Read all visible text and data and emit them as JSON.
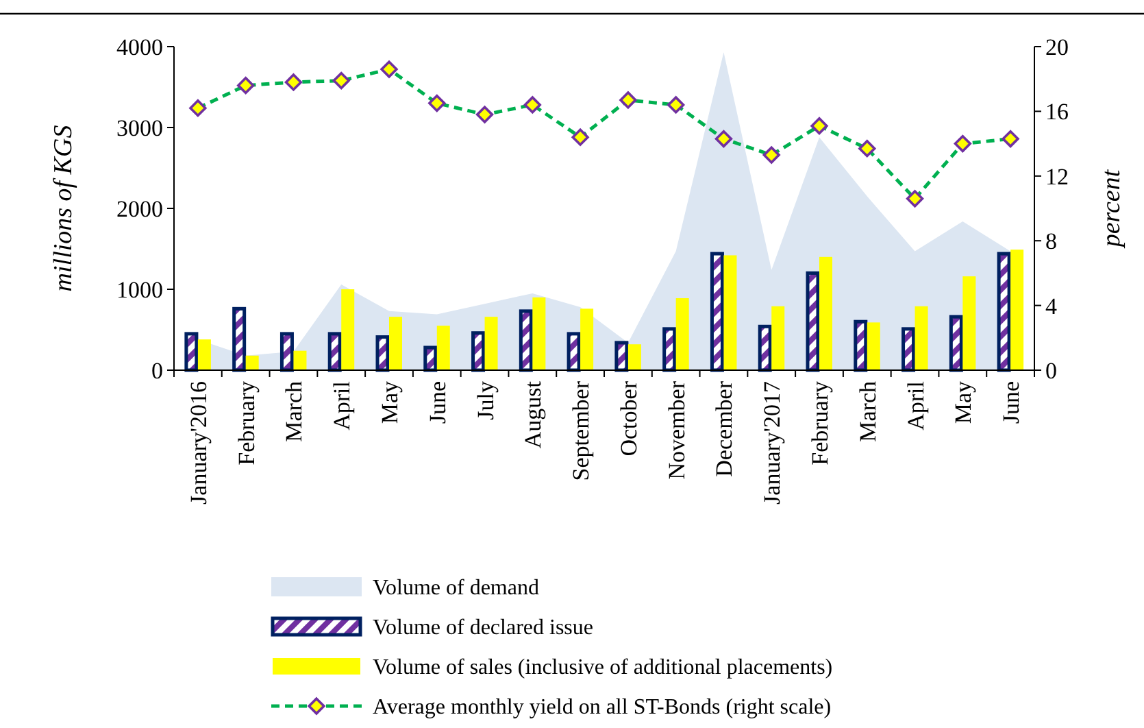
{
  "chart_data": {
    "type": "bar",
    "ylabel": "millions of KGS",
    "y2label": "percent",
    "categories": [
      "January'2016",
      "February",
      "March",
      "April",
      "May",
      "June",
      "July",
      "August",
      "September",
      "October",
      "November",
      "December",
      "January'2017",
      "February",
      "March",
      "April",
      "May",
      "June"
    ],
    "series": [
      {
        "name": "Volume of demand",
        "type": "area",
        "color": "#dce6f2",
        "values": [
          380,
          180,
          230,
          1060,
          730,
          690,
          820,
          950,
          780,
          340,
          1470,
          3930,
          1240,
          2880,
          2150,
          1470,
          1840,
          1470
        ]
      },
      {
        "name": "Volume of declared issue",
        "color": "#002060",
        "values": [
          450,
          760,
          450,
          450,
          410,
          280,
          460,
          730,
          450,
          340,
          510,
          1440,
          540,
          1200,
          600,
          510,
          660,
          1440
        ]
      },
      {
        "name": "Volume of sales (inclusive of additional placements)",
        "color": "#ffff00",
        "values": [
          380,
          180,
          240,
          1000,
          660,
          550,
          660,
          900,
          760,
          320,
          890,
          1420,
          790,
          1400,
          590,
          790,
          1160,
          1490
        ]
      },
      {
        "name": "Average monthly yield on all ST-Bonds (right scale)",
        "type": "line",
        "axis": "y2",
        "color": "#00b050",
        "marker": "diamond",
        "line_style": "dashed",
        "values": [
          16.2,
          17.6,
          17.8,
          17.9,
          18.6,
          16.5,
          15.8,
          16.4,
          14.4,
          16.7,
          16.4,
          14.3,
          13.3,
          15.1,
          13.7,
          10.6,
          14.0,
          14.3
        ]
      }
    ],
    "ylim": [
      0,
      4000
    ],
    "yticks": [
      0,
      1000,
      2000,
      3000,
      4000
    ],
    "y2lim": [
      0,
      20
    ],
    "y2ticks": [
      0,
      4,
      8,
      12,
      16,
      20
    ],
    "grid": false,
    "legend": "bottom"
  }
}
